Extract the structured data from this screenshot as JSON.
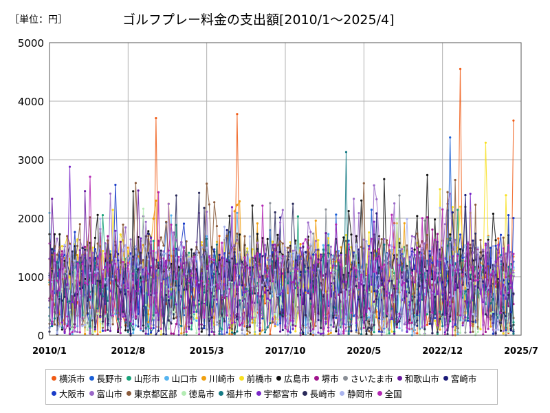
{
  "header": {
    "unit": "［単位：円］",
    "title": "ゴルフプレー料金の支出額[2010/1～2025/4]"
  },
  "chart_data": {
    "type": "line",
    "title": "ゴルフプレー料金の支出額[2010/1～2025/4]",
    "unit": "［単位：円］",
    "xlabel": "",
    "ylabel": "",
    "ylim": [
      0,
      5000
    ],
    "yticks": [
      "0",
      "1000",
      "2000",
      "3000",
      "4000",
      "5000"
    ],
    "xticks": [
      "2010/1",
      "2012/8",
      "2015/3",
      "2017/10",
      "2020/5",
      "2022/12",
      "2025/7"
    ],
    "grid": true,
    "legend_position": "bottom",
    "series": [
      {
        "name": "横浜市",
        "color": "#f05a14"
      },
      {
        "name": "長野市",
        "color": "#1a5fd6"
      },
      {
        "name": "山形市",
        "color": "#1aa37a"
      },
      {
        "name": "山口市",
        "color": "#56b4f0"
      },
      {
        "name": "川崎市",
        "color": "#f0a010"
      },
      {
        "name": "前橋市",
        "color": "#f8e020"
      },
      {
        "name": "広島市",
        "color": "#111111"
      },
      {
        "name": "堺市",
        "color": "#a0148c"
      },
      {
        "name": "さいたま市",
        "color": "#8a8f96"
      },
      {
        "name": "和歌山市",
        "color": "#6a1aa0"
      },
      {
        "name": "宮崎市",
        "color": "#1a1a78"
      },
      {
        "name": "大阪市",
        "color": "#1a3cc8"
      },
      {
        "name": "富山市",
        "color": "#9a68c8"
      },
      {
        "name": "東京都区部",
        "color": "#8a5a3a"
      },
      {
        "name": "徳島市",
        "color": "#b4ecb4"
      },
      {
        "name": "福井市",
        "color": "#147a84"
      },
      {
        "name": "宇都宮市",
        "color": "#7a28c8"
      },
      {
        "name": "長崎市",
        "color": "#2a2a5a"
      },
      {
        "name": "静岡市",
        "color": "#aab4ee"
      },
      {
        "name": "全国",
        "color": "#b428b4"
      }
    ],
    "peaks": [
      {
        "series": "横浜市",
        "date": "2023/7",
        "value": 4550
      },
      {
        "series": "横浜市",
        "date": "2016/3",
        "value": 3780
      },
      {
        "series": "横浜市",
        "date": "2013/7",
        "value": 3710
      },
      {
        "series": "横浜市",
        "date": "2025/4",
        "value": 3670
      },
      {
        "series": "福井市",
        "date": "2019/10",
        "value": 3130
      },
      {
        "series": "長野市",
        "date": "2023/3",
        "value": 3380
      },
      {
        "series": "前橋市",
        "date": "2024/5",
        "value": 3290
      },
      {
        "series": "宇都宮市",
        "date": "2010/9",
        "value": 2880
      }
    ]
  }
}
